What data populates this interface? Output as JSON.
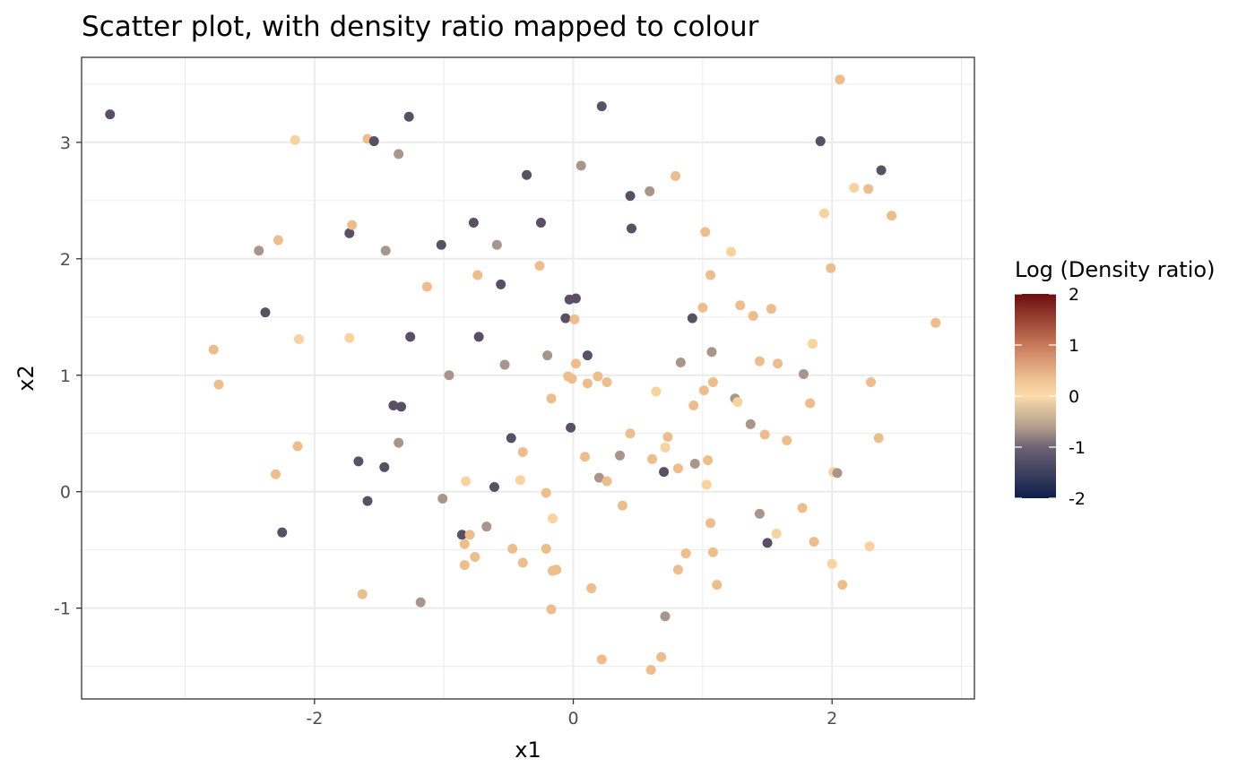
{
  "chart_data": {
    "type": "scatter",
    "title": "Scatter plot, with density ratio mapped to colour",
    "xlabel": "x1",
    "ylabel": "x2",
    "xlim": [
      -3.8,
      3.1
    ],
    "ylim": [
      -1.78,
      3.73
    ],
    "xticks": [
      -2,
      0,
      2
    ],
    "yticks": [
      -1,
      0,
      1,
      2,
      3
    ],
    "xtick_labels": [
      "-2",
      "0",
      "2"
    ],
    "ytick_labels": [
      "-1",
      "0",
      "1",
      "2",
      "3"
    ],
    "grid": true,
    "legend": {
      "title": "Log (Density ratio)",
      "position": "right",
      "range": [
        -2,
        2
      ],
      "ticks": [
        2,
        1,
        0,
        -1,
        -2
      ],
      "tick_labels": [
        "2",
        "1",
        "0",
        "-1",
        "-2"
      ],
      "gradient": [
        {
          "value": 2,
          "color": "#6b0d0d"
        },
        {
          "value": 1,
          "color": "#c8795a"
        },
        {
          "value": 0.3,
          "color": "#f0c496"
        },
        {
          "value": 0,
          "color": "#fbdba9"
        },
        {
          "value": -0.6,
          "color": "#b49f8c"
        },
        {
          "value": -1,
          "color": "#6e6274"
        },
        {
          "value": -2,
          "color": "#0d1e4b"
        }
      ]
    },
    "point_colors": {
      "dark": "#5a5064",
      "brown": "#a8968c",
      "tan": "#eebd8c",
      "light": "#f8d39e"
    },
    "points": [
      {
        "x": -3.58,
        "y": 3.24,
        "c": "dark"
      },
      {
        "x": -2.78,
        "y": 1.22,
        "c": "tan"
      },
      {
        "x": -2.74,
        "y": 0.92,
        "c": "tan"
      },
      {
        "x": -2.43,
        "y": 2.07,
        "c": "brown"
      },
      {
        "x": -2.38,
        "y": 1.54,
        "c": "dark"
      },
      {
        "x": -2.3,
        "y": 0.15,
        "c": "tan"
      },
      {
        "x": -2.28,
        "y": 2.16,
        "c": "tan"
      },
      {
        "x": -2.25,
        "y": -0.35,
        "c": "dark"
      },
      {
        "x": -2.15,
        "y": 3.02,
        "c": "light"
      },
      {
        "x": -2.13,
        "y": 0.39,
        "c": "tan"
      },
      {
        "x": -2.12,
        "y": 1.31,
        "c": "light"
      },
      {
        "x": -1.73,
        "y": 1.32,
        "c": "light"
      },
      {
        "x": -1.73,
        "y": 2.22,
        "c": "dark"
      },
      {
        "x": -1.71,
        "y": 2.29,
        "c": "tan"
      },
      {
        "x": -1.66,
        "y": 0.26,
        "c": "dark"
      },
      {
        "x": -1.63,
        "y": -0.88,
        "c": "tan"
      },
      {
        "x": -1.59,
        "y": -0.08,
        "c": "dark"
      },
      {
        "x": -1.59,
        "y": 3.03,
        "c": "tan"
      },
      {
        "x": -1.54,
        "y": 3.01,
        "c": "dark"
      },
      {
        "x": -1.46,
        "y": 0.21,
        "c": "dark"
      },
      {
        "x": -1.45,
        "y": 2.07,
        "c": "brown"
      },
      {
        "x": -1.39,
        "y": 0.74,
        "c": "dark"
      },
      {
        "x": -1.35,
        "y": 2.9,
        "c": "brown"
      },
      {
        "x": -1.35,
        "y": 0.42,
        "c": "brown"
      },
      {
        "x": -1.33,
        "y": 0.73,
        "c": "dark"
      },
      {
        "x": -1.27,
        "y": 3.22,
        "c": "dark"
      },
      {
        "x": -1.26,
        "y": 1.33,
        "c": "dark"
      },
      {
        "x": -1.18,
        "y": -0.95,
        "c": "brown"
      },
      {
        "x": -1.13,
        "y": 1.76,
        "c": "tan"
      },
      {
        "x": -1.02,
        "y": 2.12,
        "c": "dark"
      },
      {
        "x": -1.01,
        "y": -0.06,
        "c": "brown"
      },
      {
        "x": -0.96,
        "y": 1.0,
        "c": "brown"
      },
      {
        "x": -0.86,
        "y": -0.37,
        "c": "dark"
      },
      {
        "x": -0.84,
        "y": -0.63,
        "c": "tan"
      },
      {
        "x": -0.84,
        "y": -0.45,
        "c": "tan"
      },
      {
        "x": -0.83,
        "y": 0.09,
        "c": "light"
      },
      {
        "x": -0.8,
        "y": -0.37,
        "c": "tan"
      },
      {
        "x": -0.77,
        "y": 2.31,
        "c": "dark"
      },
      {
        "x": -0.76,
        "y": -0.56,
        "c": "tan"
      },
      {
        "x": -0.74,
        "y": 1.86,
        "c": "tan"
      },
      {
        "x": -0.73,
        "y": 1.33,
        "c": "dark"
      },
      {
        "x": -0.67,
        "y": -0.3,
        "c": "brown"
      },
      {
        "x": -0.61,
        "y": 0.04,
        "c": "dark"
      },
      {
        "x": -0.59,
        "y": 2.12,
        "c": "brown"
      },
      {
        "x": -0.56,
        "y": 1.78,
        "c": "dark"
      },
      {
        "x": -0.53,
        "y": 1.09,
        "c": "brown"
      },
      {
        "x": -0.48,
        "y": 0.46,
        "c": "dark"
      },
      {
        "x": -0.47,
        "y": -0.49,
        "c": "tan"
      },
      {
        "x": -0.41,
        "y": 0.1,
        "c": "light"
      },
      {
        "x": -0.39,
        "y": -0.61,
        "c": "tan"
      },
      {
        "x": -0.39,
        "y": 0.34,
        "c": "tan"
      },
      {
        "x": -0.36,
        "y": 2.72,
        "c": "dark"
      },
      {
        "x": -0.26,
        "y": 1.94,
        "c": "tan"
      },
      {
        "x": -0.25,
        "y": 2.31,
        "c": "dark"
      },
      {
        "x": -0.21,
        "y": -0.49,
        "c": "tan"
      },
      {
        "x": -0.21,
        "y": -0.01,
        "c": "tan"
      },
      {
        "x": -0.2,
        "y": 1.17,
        "c": "brown"
      },
      {
        "x": -0.17,
        "y": 0.8,
        "c": "tan"
      },
      {
        "x": -0.17,
        "y": -1.01,
        "c": "tan"
      },
      {
        "x": -0.16,
        "y": -0.68,
        "c": "tan"
      },
      {
        "x": -0.16,
        "y": -0.23,
        "c": "light"
      },
      {
        "x": -0.13,
        "y": -0.67,
        "c": "tan"
      },
      {
        "x": -0.06,
        "y": 1.49,
        "c": "dark"
      },
      {
        "x": -0.04,
        "y": 0.99,
        "c": "tan"
      },
      {
        "x": -0.03,
        "y": 1.65,
        "c": "dark"
      },
      {
        "x": -0.02,
        "y": 0.55,
        "c": "dark"
      },
      {
        "x": -0.01,
        "y": 0.97,
        "c": "tan"
      },
      {
        "x": 0.01,
        "y": 1.48,
        "c": "tan"
      },
      {
        "x": 0.02,
        "y": 1.66,
        "c": "dark"
      },
      {
        "x": 0.02,
        "y": 1.1,
        "c": "tan"
      },
      {
        "x": 0.06,
        "y": 2.8,
        "c": "brown"
      },
      {
        "x": 0.09,
        "y": 0.3,
        "c": "tan"
      },
      {
        "x": 0.11,
        "y": 0.93,
        "c": "tan"
      },
      {
        "x": 0.11,
        "y": 1.17,
        "c": "dark"
      },
      {
        "x": 0.14,
        "y": -0.83,
        "c": "tan"
      },
      {
        "x": 0.19,
        "y": 0.99,
        "c": "tan"
      },
      {
        "x": 0.2,
        "y": 0.12,
        "c": "brown"
      },
      {
        "x": 0.22,
        "y": -1.44,
        "c": "tan"
      },
      {
        "x": 0.22,
        "y": 3.31,
        "c": "dark"
      },
      {
        "x": 0.26,
        "y": 0.94,
        "c": "tan"
      },
      {
        "x": 0.26,
        "y": 0.09,
        "c": "tan"
      },
      {
        "x": 0.36,
        "y": 0.31,
        "c": "brown"
      },
      {
        "x": 0.38,
        "y": -0.12,
        "c": "tan"
      },
      {
        "x": 0.44,
        "y": 0.5,
        "c": "tan"
      },
      {
        "x": 0.44,
        "y": 2.54,
        "c": "dark"
      },
      {
        "x": 0.45,
        "y": 2.26,
        "c": "dark"
      },
      {
        "x": 0.59,
        "y": 2.58,
        "c": "brown"
      },
      {
        "x": 0.6,
        "y": -1.53,
        "c": "tan"
      },
      {
        "x": 0.61,
        "y": 0.28,
        "c": "tan"
      },
      {
        "x": 0.64,
        "y": 0.86,
        "c": "light"
      },
      {
        "x": 0.68,
        "y": -1.42,
        "c": "tan"
      },
      {
        "x": 0.7,
        "y": 0.17,
        "c": "dark"
      },
      {
        "x": 0.71,
        "y": -1.07,
        "c": "brown"
      },
      {
        "x": 0.71,
        "y": 0.38,
        "c": "light"
      },
      {
        "x": 0.73,
        "y": 0.47,
        "c": "tan"
      },
      {
        "x": 0.79,
        "y": 2.71,
        "c": "tan"
      },
      {
        "x": 0.81,
        "y": 0.2,
        "c": "tan"
      },
      {
        "x": 0.81,
        "y": -0.67,
        "c": "tan"
      },
      {
        "x": 0.83,
        "y": 1.11,
        "c": "brown"
      },
      {
        "x": 0.87,
        "y": -0.53,
        "c": "tan"
      },
      {
        "x": 0.92,
        "y": 1.49,
        "c": "dark"
      },
      {
        "x": 0.93,
        "y": 0.74,
        "c": "tan"
      },
      {
        "x": 0.94,
        "y": 0.24,
        "c": "brown"
      },
      {
        "x": 1.0,
        "y": 1.58,
        "c": "tan"
      },
      {
        "x": 1.01,
        "y": 0.87,
        "c": "tan"
      },
      {
        "x": 1.02,
        "y": 2.23,
        "c": "tan"
      },
      {
        "x": 1.03,
        "y": 0.06,
        "c": "light"
      },
      {
        "x": 1.04,
        "y": 0.27,
        "c": "tan"
      },
      {
        "x": 1.06,
        "y": 1.86,
        "c": "tan"
      },
      {
        "x": 1.06,
        "y": -0.27,
        "c": "tan"
      },
      {
        "x": 1.07,
        "y": 1.2,
        "c": "brown"
      },
      {
        "x": 1.08,
        "y": 0.94,
        "c": "tan"
      },
      {
        "x": 1.08,
        "y": -0.52,
        "c": "tan"
      },
      {
        "x": 1.11,
        "y": -0.8,
        "c": "tan"
      },
      {
        "x": 1.22,
        "y": 2.06,
        "c": "light"
      },
      {
        "x": 1.25,
        "y": 0.8,
        "c": "brown"
      },
      {
        "x": 1.27,
        "y": 0.77,
        "c": "light"
      },
      {
        "x": 1.29,
        "y": 1.6,
        "c": "tan"
      },
      {
        "x": 1.37,
        "y": 0.58,
        "c": "brown"
      },
      {
        "x": 1.39,
        "y": 1.51,
        "c": "tan"
      },
      {
        "x": 1.44,
        "y": 1.12,
        "c": "tan"
      },
      {
        "x": 1.44,
        "y": -0.19,
        "c": "brown"
      },
      {
        "x": 1.48,
        "y": 0.49,
        "c": "tan"
      },
      {
        "x": 1.5,
        "y": -0.44,
        "c": "dark"
      },
      {
        "x": 1.53,
        "y": 1.57,
        "c": "tan"
      },
      {
        "x": 1.57,
        "y": -0.36,
        "c": "light"
      },
      {
        "x": 1.58,
        "y": 1.1,
        "c": "tan"
      },
      {
        "x": 1.65,
        "y": 0.44,
        "c": "tan"
      },
      {
        "x": 1.77,
        "y": -0.14,
        "c": "tan"
      },
      {
        "x": 1.78,
        "y": 1.01,
        "c": "brown"
      },
      {
        "x": 1.83,
        "y": 0.76,
        "c": "tan"
      },
      {
        "x": 1.85,
        "y": 1.27,
        "c": "light"
      },
      {
        "x": 1.86,
        "y": -0.43,
        "c": "tan"
      },
      {
        "x": 1.91,
        "y": 3.01,
        "c": "dark"
      },
      {
        "x": 1.94,
        "y": 2.39,
        "c": "light"
      },
      {
        "x": 1.99,
        "y": 1.92,
        "c": "tan"
      },
      {
        "x": 2.0,
        "y": -0.62,
        "c": "light"
      },
      {
        "x": 2.01,
        "y": 0.17,
        "c": "light"
      },
      {
        "x": 2.04,
        "y": 0.16,
        "c": "brown"
      },
      {
        "x": 2.06,
        "y": 3.54,
        "c": "tan"
      },
      {
        "x": 2.08,
        "y": -0.8,
        "c": "tan"
      },
      {
        "x": 2.17,
        "y": 2.61,
        "c": "light"
      },
      {
        "x": 2.28,
        "y": 2.6,
        "c": "tan"
      },
      {
        "x": 2.29,
        "y": -0.47,
        "c": "light"
      },
      {
        "x": 2.3,
        "y": 0.94,
        "c": "tan"
      },
      {
        "x": 2.36,
        "y": 0.46,
        "c": "tan"
      },
      {
        "x": 2.38,
        "y": 2.76,
        "c": "dark"
      },
      {
        "x": 2.46,
        "y": 2.37,
        "c": "tan"
      },
      {
        "x": 2.8,
        "y": 1.45,
        "c": "tan"
      }
    ]
  }
}
